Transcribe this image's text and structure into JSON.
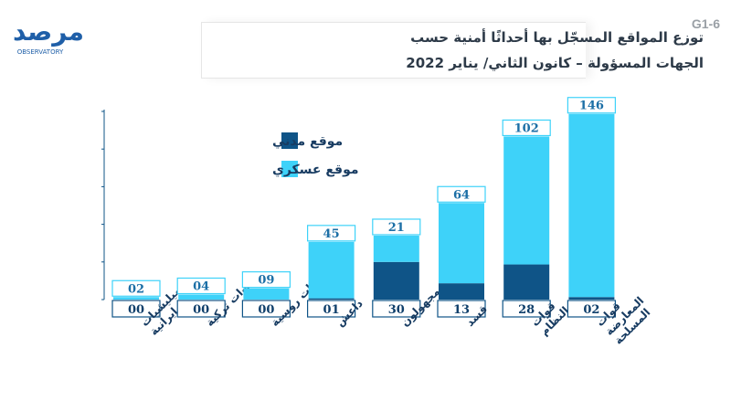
{
  "header": {
    "title_line1": "توزع المواقع المسجّل بها أحداثًا أمنية حسب",
    "title_line2": "الجهات المسؤولة – كانون الثاني/ يناير 2022",
    "chart_code": "G1-6",
    "logo_text": "مرصد",
    "logo_subtext": "OBSERVATORY"
  },
  "colors": {
    "civilian": "#0f5487",
    "military": "#3ed2f9",
    "axis": "#0f5487",
    "label_bg": "#ffffff"
  },
  "chart_data": {
    "type": "bar",
    "stacked": true,
    "categories": [
      "ميليشيات إيرانية",
      "قوات تركية",
      "قوات روسية",
      "داعش",
      "مجهولون",
      "قسد",
      "قوات النظام",
      "قوات المعارضة المسلحة"
    ],
    "series": [
      {
        "name": "موقع مدني",
        "values": [
          0,
          0,
          0,
          1,
          30,
          13,
          28,
          2
        ],
        "labels": [
          "00",
          "00",
          "00",
          "01",
          "30",
          "13",
          "28",
          "02"
        ]
      },
      {
        "name": "موقع عسكري",
        "values": [
          2,
          4,
          9,
          45,
          21,
          64,
          102,
          146
        ],
        "labels": [
          "02",
          "04",
          "09",
          "45",
          "21",
          "64",
          "102",
          "146"
        ]
      }
    ],
    "ylim": [
      0,
      150
    ],
    "grid": false,
    "legend_position": "top-left",
    "title": "توزع المواقع المسجّل بها أحداثًا أمنية حسب الجهات المسؤولة – كانون الثاني/ يناير 2022"
  }
}
